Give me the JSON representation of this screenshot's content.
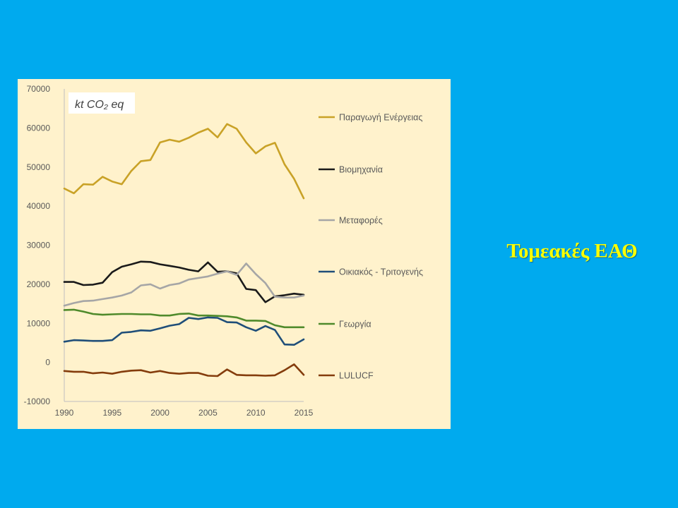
{
  "slide": {
    "title": "Τομεακές ΕΑΘ",
    "background_color": "#00aaee",
    "title_color": "#ffff00"
  },
  "chart_data": {
    "type": "line",
    "unit_label": "kt CO₂ eq",
    "panel_background": "#fff2cc",
    "x": [
      1990,
      1991,
      1992,
      1993,
      1994,
      1995,
      1996,
      1997,
      1998,
      1999,
      2000,
      2001,
      2002,
      2003,
      2004,
      2005,
      2006,
      2007,
      2008,
      2009,
      2010,
      2011,
      2012,
      2013,
      2014,
      2015
    ],
    "xlim": [
      1990,
      2015
    ],
    "ylim": [
      -10000,
      70000
    ],
    "xticks": [
      "1990",
      "1995",
      "2000",
      "2005",
      "2010",
      "2015"
    ],
    "yticks": [
      "70000",
      "60000",
      "50000",
      "40000",
      "30000",
      "20000",
      "10000",
      "0",
      "-10000"
    ],
    "legend_position": "right",
    "grid": false,
    "series": [
      {
        "name": "Παραγωγή Ενέργειας",
        "color": "#c9a227",
        "values": [
          44500,
          43300,
          45600,
          45500,
          47500,
          46300,
          45600,
          49000,
          51500,
          51800,
          56300,
          57000,
          56500,
          57500,
          58800,
          59800,
          57600,
          61000,
          59800,
          56300,
          53500,
          55300,
          56200,
          50700,
          47000,
          42000
        ]
      },
      {
        "name": "Βιομηχανία",
        "color": "#1a1a1a",
        "values": [
          20600,
          20600,
          19800,
          19900,
          20400,
          23100,
          24500,
          25100,
          25800,
          25700,
          25100,
          24700,
          24300,
          23700,
          23300,
          25600,
          23200,
          23300,
          22800,
          18800,
          18500,
          15400,
          16900,
          17200,
          17600,
          17300
        ]
      },
      {
        "name": "Μεταφορές",
        "color": "#a6a6a6",
        "values": [
          14500,
          15200,
          15700,
          15800,
          16200,
          16600,
          17100,
          17900,
          19700,
          20000,
          18900,
          19800,
          20200,
          21200,
          21600,
          22000,
          22700,
          23300,
          22400,
          25300,
          22600,
          20300,
          16800,
          16600,
          16600,
          17100
        ]
      },
      {
        "name": "Οικιακός - Τριτογενής",
        "color": "#1f4e79",
        "values": [
          5300,
          5700,
          5600,
          5500,
          5500,
          5700,
          7600,
          7800,
          8200,
          8100,
          8700,
          9400,
          9800,
          11400,
          11100,
          11500,
          11400,
          10300,
          10200,
          9000,
          8100,
          9300,
          8300,
          4600,
          4500,
          5900
        ]
      },
      {
        "name": "Γεωργία",
        "color": "#4f8a2b",
        "values": [
          13400,
          13500,
          13000,
          12400,
          12200,
          12300,
          12400,
          12400,
          12300,
          12300,
          12000,
          12000,
          12400,
          12500,
          12000,
          12000,
          11900,
          11800,
          11500,
          10700,
          10700,
          10600,
          9500,
          9000,
          9000,
          9000
        ]
      },
      {
        "name": "LULUCF",
        "color": "#843c0c",
        "values": [
          -2200,
          -2400,
          -2400,
          -2800,
          -2600,
          -2900,
          -2400,
          -2100,
          -2000,
          -2600,
          -2200,
          -2700,
          -2900,
          -2700,
          -2700,
          -3400,
          -3500,
          -1800,
          -3200,
          -3300,
          -3300,
          -3400,
          -3300,
          -2000,
          -500,
          -3200
        ]
      }
    ]
  }
}
